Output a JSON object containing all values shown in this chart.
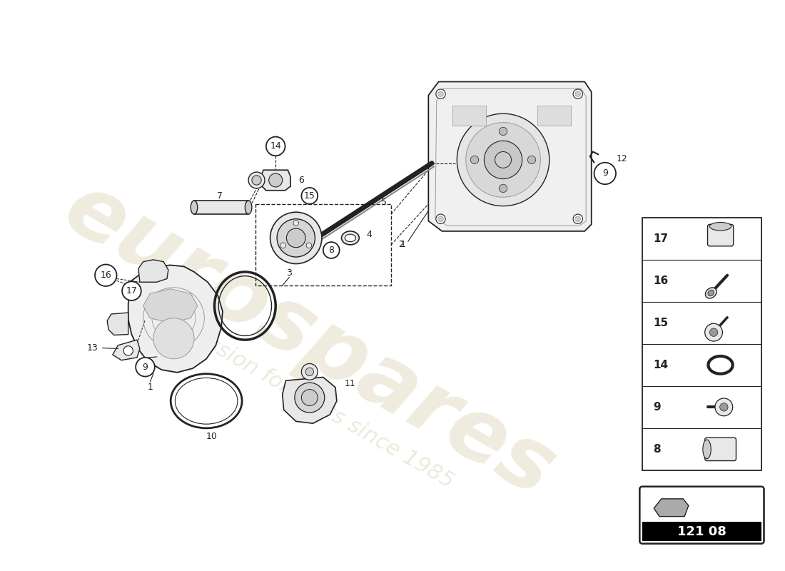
{
  "background_color": "#ffffff",
  "line_color": "#222222",
  "gray_light": "#e8e8e8",
  "gray_med": "#cccccc",
  "gray_dark": "#999999",
  "watermark_text": "eurospares",
  "watermark_subtext": "a passion for parts since 1985",
  "catalog_number": "121 08",
  "legend_items": [
    17,
    16,
    15,
    14,
    9,
    8
  ]
}
